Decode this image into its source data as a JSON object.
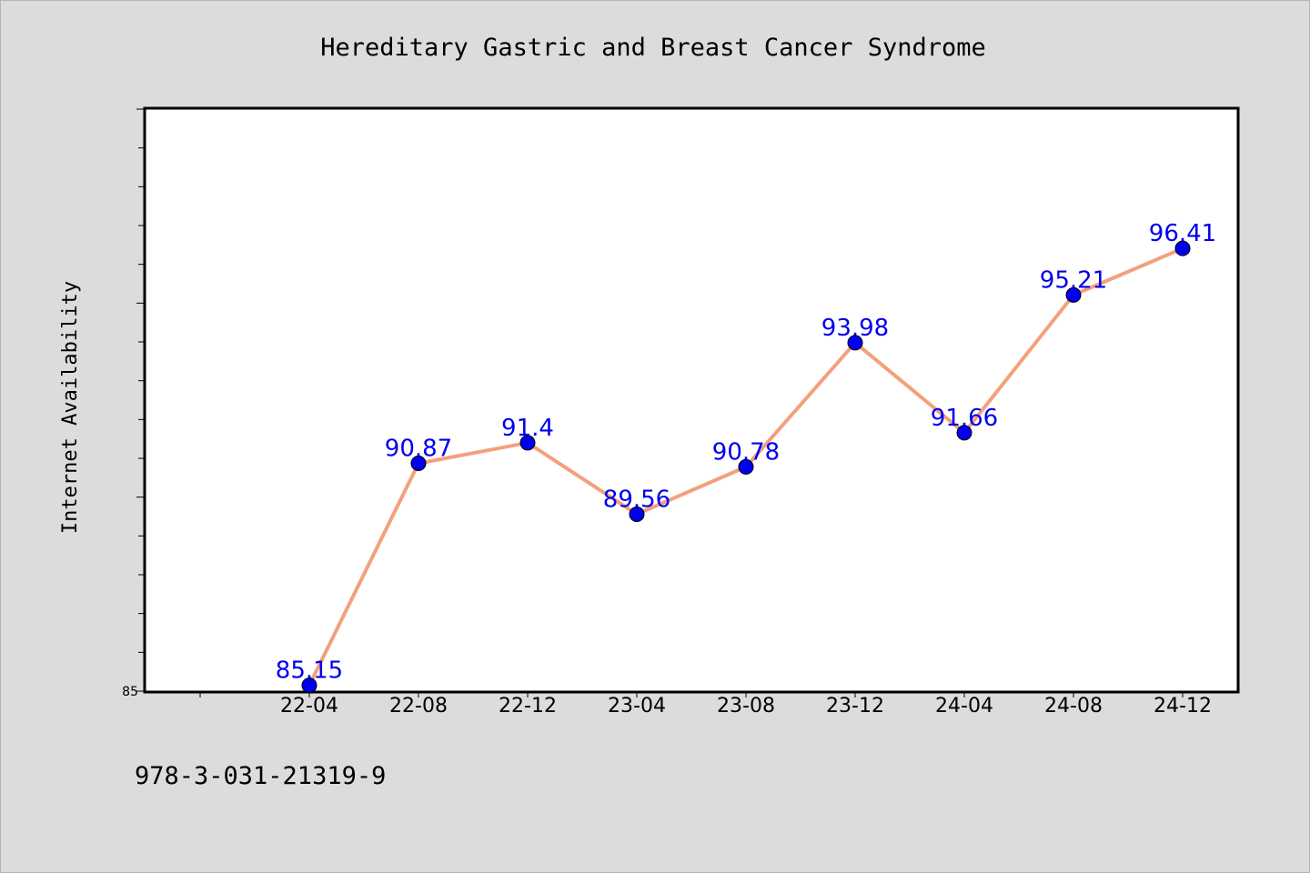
{
  "chart_data": {
    "type": "line",
    "title": "Hereditary Gastric and Breast Cancer Syndrome",
    "xlabel": "",
    "ylabel": "Internet Availability",
    "categories": [
      "22-04",
      "22-08",
      "22-12",
      "23-04",
      "23-08",
      "23-12",
      "24-04",
      "24-08",
      "24-12"
    ],
    "series": [
      {
        "values": [
          85.15,
          90.87,
          91.4,
          89.56,
          90.78,
          93.98,
          91.66,
          95.21,
          96.41
        ],
        "labels": [
          "85.15",
          "90.87",
          "91.4",
          "89.56",
          "90.78",
          "93.98",
          "91.66",
          "95.21",
          "96.41"
        ]
      }
    ],
    "ylim": [
      85,
      100
    ],
    "yticks_labeled": [
      "85"
    ],
    "grid": false,
    "legend": "none",
    "colors": {
      "line": "#f4a07d",
      "marker": "#0000ee",
      "label": "#0000ee",
      "plot_bg": "#ffffff",
      "page_bg": "#dcdcdc"
    }
  },
  "footer": {
    "isbn": "978-3-031-21319-9"
  }
}
